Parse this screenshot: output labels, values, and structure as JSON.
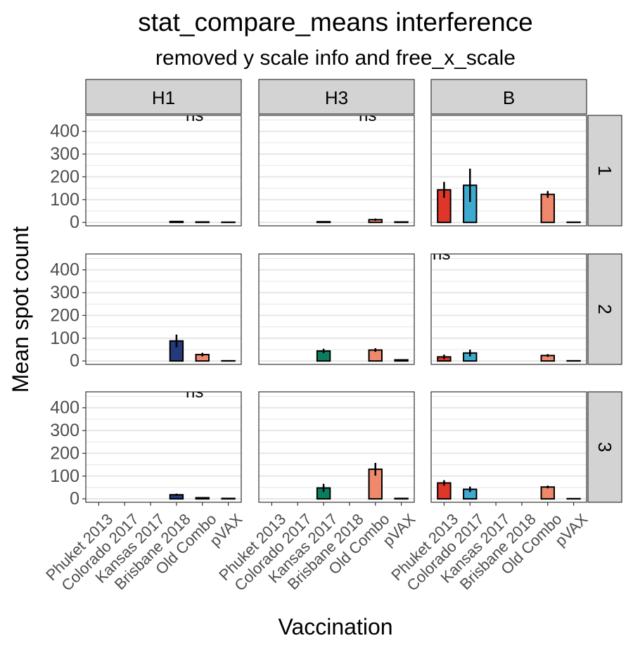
{
  "chart_data": {
    "type": "bar",
    "title": "stat_compare_means interference",
    "subtitle": "removed y scale info and free_x_scale",
    "xlabel": "Vaccination",
    "ylabel": "Mean spot count",
    "ylim": [
      -15,
      470
    ],
    "yticks": [
      0,
      100,
      200,
      300,
      400
    ],
    "categories": [
      "Phuket 2013",
      "Colorado 2017",
      "Kansas 2017",
      "Brisbane 2018",
      "Old Combo",
      "pVAX"
    ],
    "col_facets": [
      "H1",
      "H3",
      "B"
    ],
    "row_facets": [
      "1",
      "2",
      "3"
    ],
    "grid": true,
    "colors": {
      "Phuket 2013": "#e0362a",
      "Colorado 2017": "#3fa9d0",
      "Kansas 2017": "#0a7d5f",
      "Brisbane 2018": "#243a7a",
      "Old Combo": "#f0896c",
      "pVAX": "#d9d9d9",
      "strip_fill": "#d3d3d3",
      "grid_major": "#e6e6e6"
    },
    "annotation_text": "ns",
    "panels": [
      {
        "row": "1",
        "col": "H1",
        "annotation": true,
        "bars": [
          {
            "cat": "Brisbane 2018",
            "value": 4,
            "err": 2
          },
          {
            "cat": "Old Combo",
            "value": 2,
            "err": 1
          },
          {
            "cat": "pVAX",
            "value": 1,
            "err": 0.5
          }
        ]
      },
      {
        "row": "1",
        "col": "H3",
        "annotation": true,
        "bars": [
          {
            "cat": "Kansas 2017",
            "value": 3,
            "err": 2
          },
          {
            "cat": "Old Combo",
            "value": 12,
            "err": 5
          },
          {
            "cat": "pVAX",
            "value": 2,
            "err": 1
          }
        ]
      },
      {
        "row": "1",
        "col": "B",
        "annotation": false,
        "bars": [
          {
            "cat": "Phuket 2013",
            "value": 143,
            "err": 35
          },
          {
            "cat": "Colorado 2017",
            "value": 163,
            "err": 73
          },
          {
            "cat": "Old Combo",
            "value": 123,
            "err": 15
          },
          {
            "cat": "pVAX",
            "value": 1,
            "err": 0.5
          }
        ]
      },
      {
        "row": "2",
        "col": "H1",
        "annotation": false,
        "bars": [
          {
            "cat": "Brisbane 2018",
            "value": 88,
            "err": 28
          },
          {
            "cat": "Old Combo",
            "value": 28,
            "err": 8
          },
          {
            "cat": "pVAX",
            "value": 1,
            "err": 0.5
          }
        ]
      },
      {
        "row": "2",
        "col": "H3",
        "annotation": false,
        "bars": [
          {
            "cat": "Kansas 2017",
            "value": 44,
            "err": 10
          },
          {
            "cat": "Old Combo",
            "value": 48,
            "err": 8
          },
          {
            "cat": "pVAX",
            "value": 5,
            "err": 2
          }
        ]
      },
      {
        "row": "2",
        "col": "B",
        "annotation": true,
        "bars": [
          {
            "cat": "Phuket 2013",
            "value": 18,
            "err": 10
          },
          {
            "cat": "Colorado 2017",
            "value": 35,
            "err": 15
          },
          {
            "cat": "Old Combo",
            "value": 24,
            "err": 6
          },
          {
            "cat": "pVAX",
            "value": 1,
            "err": 0.5
          }
        ]
      },
      {
        "row": "3",
        "col": "H1",
        "annotation": true,
        "bars": [
          {
            "cat": "Brisbane 2018",
            "value": 18,
            "err": 5
          },
          {
            "cat": "Old Combo",
            "value": 5,
            "err": 3
          },
          {
            "cat": "pVAX",
            "value": 2,
            "err": 1
          }
        ]
      },
      {
        "row": "3",
        "col": "H3",
        "annotation": false,
        "bars": [
          {
            "cat": "Kansas 2017",
            "value": 48,
            "err": 18
          },
          {
            "cat": "Old Combo",
            "value": 130,
            "err": 28
          },
          {
            "cat": "pVAX",
            "value": 2,
            "err": 1
          }
        ]
      },
      {
        "row": "3",
        "col": "B",
        "annotation": false,
        "bars": [
          {
            "cat": "Phuket 2013",
            "value": 70,
            "err": 12
          },
          {
            "cat": "Colorado 2017",
            "value": 42,
            "err": 12
          },
          {
            "cat": "Old Combo",
            "value": 52,
            "err": 6
          },
          {
            "cat": "pVAX",
            "value": 1,
            "err": 0.5
          }
        ]
      }
    ]
  }
}
